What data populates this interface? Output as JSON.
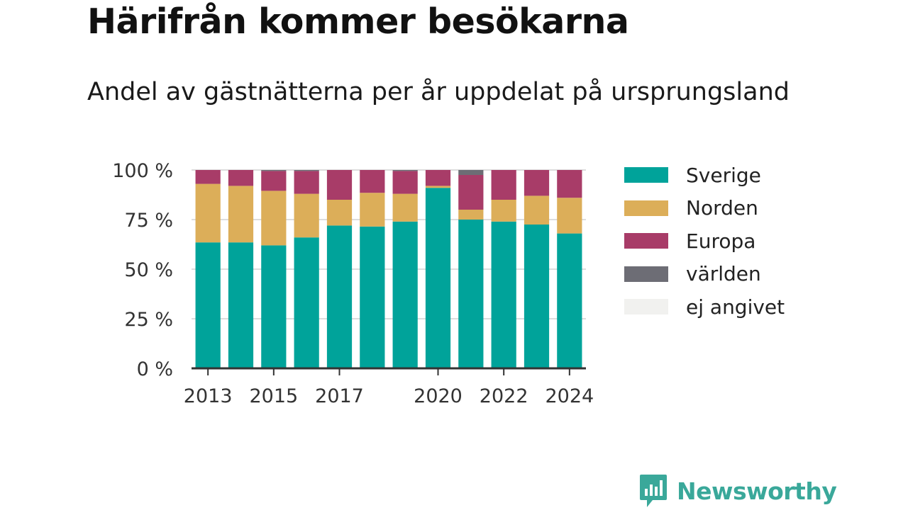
{
  "title": "Härifrån kommer besökarna",
  "subtitle": "Andel av gästnätterna per år uppdelat på ursprungsland",
  "brand": {
    "name": "Newsworthy",
    "color": "#3aa89a",
    "icon": "bar-chart-logo-icon"
  },
  "chart_data": {
    "type": "bar",
    "stacked": true,
    "categories": [
      "2013",
      "2014",
      "2015",
      "2016",
      "2017",
      "2018",
      "2019",
      "2020",
      "2021",
      "2022",
      "2023",
      "2024"
    ],
    "x_tick_labels": [
      "2013",
      "2015",
      "2017",
      "2020",
      "2022",
      "2024"
    ],
    "y_tick_labels": [
      "0 %",
      "25 %",
      "50 %",
      "75 %",
      "100 %"
    ],
    "y_ticks": [
      0,
      25,
      50,
      75,
      100
    ],
    "ylim": [
      0,
      100
    ],
    "grid": true,
    "legend_position": "right",
    "series": [
      {
        "name": "Sverige",
        "color": "#00a39a",
        "values": [
          63.5,
          63.5,
          62,
          66,
          72,
          71.5,
          74,
          91,
          75,
          74,
          72.5,
          68
        ]
      },
      {
        "name": "Norden",
        "color": "#dcae59",
        "values": [
          29.5,
          28.5,
          27.5,
          22,
          13,
          17,
          14,
          1,
          5,
          11,
          14.5,
          18
        ]
      },
      {
        "name": "Europa",
        "color": "#a83c68",
        "values": [
          7,
          8,
          10,
          11.5,
          15,
          11.5,
          11.5,
          8,
          17.5,
          15,
          13,
          14
        ]
      },
      {
        "name": "världen",
        "color": "#6d6d75",
        "values": [
          0,
          0,
          0.5,
          0.5,
          0,
          0,
          0.5,
          0,
          2.5,
          0,
          0,
          0
        ]
      },
      {
        "name": "ej angivet",
        "color": "#f1f1ef",
        "values": [
          0,
          0,
          0,
          0,
          0,
          0,
          0,
          0,
          0,
          0,
          0,
          0
        ]
      }
    ]
  }
}
